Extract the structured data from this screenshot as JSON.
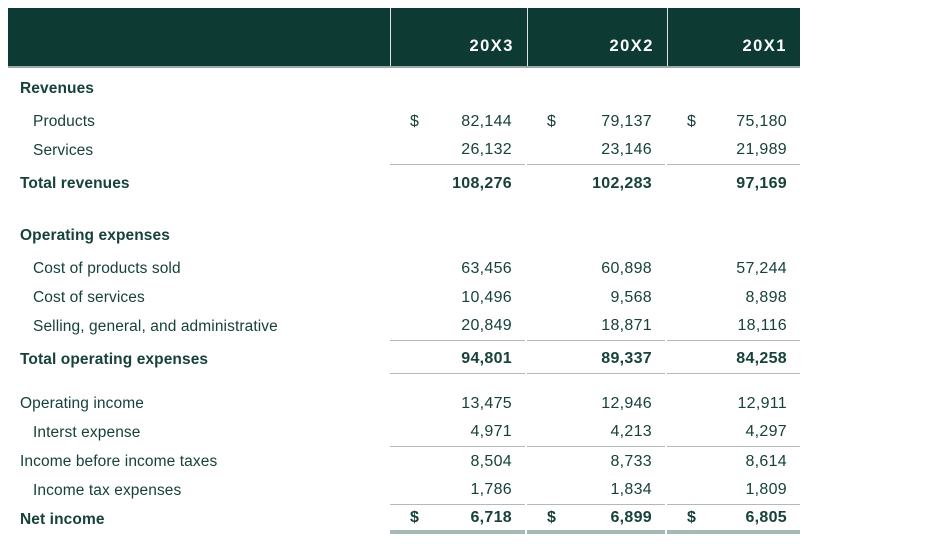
{
  "colors": {
    "header_bg": "#0e3a34",
    "text": "#17413a",
    "rule": "#b4b9b7",
    "thick_rule": "#a5bab4",
    "header_sep": "#dce3e1",
    "header_border": "#9ca9a5"
  },
  "table": {
    "currency_symbol": "$",
    "columns": [
      "20X3",
      "20X2",
      "20X1"
    ],
    "sections": [
      {
        "rows": [
          {
            "label": "Revenues",
            "type": "section-head",
            "values": [
              "",
              "",
              ""
            ]
          },
          {
            "label": "Products",
            "type": "item",
            "indent": true,
            "dollar": true,
            "values": [
              "82,144",
              "79,137",
              "75,180"
            ]
          },
          {
            "label": "Services",
            "type": "item",
            "indent": true,
            "rule": "single",
            "values": [
              "26,132",
              "23,146",
              "21,989"
            ]
          },
          {
            "label": "Total revenues",
            "type": "total",
            "values": [
              "108,276",
              "102,283",
              "97,169"
            ]
          }
        ]
      },
      {
        "rows": [
          {
            "label": "Operating expenses",
            "type": "section-head",
            "values": [
              "",
              "",
              ""
            ]
          },
          {
            "label": "Cost of products sold",
            "type": "item",
            "indent": true,
            "values": [
              "63,456",
              "60,898",
              "57,244"
            ]
          },
          {
            "label": "Cost of services",
            "type": "item",
            "indent": true,
            "values": [
              "10,496",
              "9,568",
              "8,898"
            ]
          },
          {
            "label": "Selling, general, and administrative",
            "type": "item",
            "indent": true,
            "rule": "single",
            "values": [
              "20,849",
              "18,871",
              "18,116"
            ]
          },
          {
            "label": "Total operating expenses",
            "type": "total",
            "rule": "single",
            "values": [
              "94,801",
              "89,337",
              "84,258"
            ]
          }
        ]
      },
      {
        "rows": [
          {
            "label": "Operating income",
            "type": "item",
            "values": [
              "13,475",
              "12,946",
              "12,911"
            ]
          },
          {
            "label": "Interst expense",
            "type": "item",
            "indent": true,
            "rule": "single",
            "values": [
              "4,971",
              "4,213",
              "4,297"
            ]
          },
          {
            "label": "Income before income taxes",
            "type": "item",
            "values": [
              "8,504",
              "8,733",
              "8,614"
            ]
          },
          {
            "label": "Income tax expenses",
            "type": "item",
            "indent": true,
            "rule": "single",
            "values": [
              "1,786",
              "1,834",
              "1,809"
            ]
          },
          {
            "label": "Net income",
            "type": "total",
            "dollar": true,
            "rule": "thick",
            "values": [
              "6,718",
              "6,899",
              "6,805"
            ]
          }
        ]
      }
    ]
  }
}
